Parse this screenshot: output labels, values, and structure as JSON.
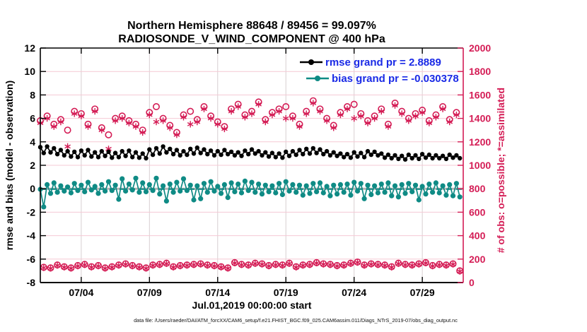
{
  "header": {
    "title_line1": "Northern Hemisphere 88648 / 89456 = 99.097%",
    "title_line2": "RADIOSONDE_V_WIND_COMPONENT @ 400 hPa"
  },
  "footnote": "data file: /Users/raeder/DAI/ATM_forcXX/CAM6_setup/f.e21.FHIST_BGC.f09_025.CAM6assim.011/Diags_NTrS_2019-07/obs_diag_output.nc",
  "chart_data": {
    "type": "line",
    "title": "Northern Hemisphere 88648 / 89456 = 99.097%",
    "subtitle": "RADIOSONDE_V_WIND_COMPONENT @ 400 hPa",
    "xlabel": "Jul.01,2019 00:00:00 start",
    "ylabel_left": "rmse and bias (model - observation)",
    "ylabel_right": "# of obs: o=possible; *=assimilated",
    "ylim_left": [
      -8,
      12
    ],
    "ylim_right": [
      0,
      2000
    ],
    "yticks_left": [
      -8,
      -6,
      -4,
      -2,
      0,
      2,
      4,
      6,
      8,
      10,
      12
    ],
    "yticks_right": [
      0,
      200,
      400,
      600,
      800,
      1000,
      1200,
      1400,
      1600,
      1800,
      2000
    ],
    "x_range_days": [
      0,
      31
    ],
    "xticks": [
      {
        "day": 3,
        "label": "07/04"
      },
      {
        "day": 8,
        "label": "07/09"
      },
      {
        "day": 13,
        "label": "07/14"
      },
      {
        "day": 18,
        "label": "07/19"
      },
      {
        "day": 23,
        "label": "07/24"
      },
      {
        "day": 28,
        "label": "07/29"
      }
    ],
    "grid": true,
    "legend": {
      "position": "top-right-inside",
      "entries": [
        {
          "label": "rmse grand pr = 2.8889",
          "series": "rmse",
          "color": "#000000"
        },
        {
          "label": "bias grand pr = -0.030378",
          "series": "bias",
          "color": "#0f8b85"
        }
      ]
    },
    "stats": {
      "rmse_grand": 2.8889,
      "bias_grand": -0.030378,
      "assimilated_total": 88648,
      "possible_total": 89456,
      "assimilated_pct": 99.097
    },
    "sampling": {
      "start_day": 0,
      "step_day": 0.25
    },
    "colors": {
      "rmse": "#000000",
      "bias": "#0f8b85",
      "obs": "#d41c55",
      "legend_text": "#1a2ae6",
      "grid_h": "#f5c9d4",
      "grid_v": "#d8cfd2",
      "zero_line": "#b3b3b3",
      "axis_left": "#000000",
      "axis_right": "#d41c55"
    },
    "series": [
      {
        "name": "rmse",
        "axis": "left",
        "marker": "filled-circle",
        "line": true,
        "values": [
          3.55,
          3.05,
          3.6,
          3.1,
          3.45,
          2.95,
          3.3,
          2.85,
          3.2,
          2.75,
          3.15,
          2.7,
          3.25,
          2.85,
          3.3,
          2.75,
          3.1,
          2.7,
          3.2,
          2.8,
          3.15,
          2.65,
          3.05,
          2.7,
          3.2,
          2.8,
          3.25,
          2.7,
          3.1,
          2.65,
          3.0,
          2.6,
          3.35,
          2.9,
          3.45,
          3.0,
          3.6,
          3.1,
          3.4,
          2.95,
          3.3,
          2.85,
          3.2,
          2.9,
          3.4,
          3.0,
          3.5,
          3.05,
          3.35,
          2.95,
          3.25,
          2.85,
          3.2,
          2.9,
          3.3,
          2.95,
          3.15,
          2.85,
          3.1,
          2.8,
          3.25,
          2.95,
          3.35,
          3.0,
          3.2,
          2.85,
          3.1,
          2.75,
          3.05,
          2.7,
          3.0,
          2.65,
          3.15,
          2.8,
          3.2,
          2.9,
          3.3,
          2.95,
          3.4,
          3.0,
          3.45,
          3.05,
          3.35,
          2.95,
          3.2,
          2.85,
          3.1,
          2.8,
          3.0,
          2.7,
          2.95,
          2.65,
          3.1,
          2.75,
          3.05,
          2.7,
          3.2,
          2.9,
          3.15,
          2.85,
          3.0,
          2.65,
          2.9,
          2.6,
          2.85,
          2.55,
          2.8,
          2.5,
          2.9,
          2.6,
          2.85,
          2.55,
          2.95,
          2.65,
          2.9,
          2.6,
          2.85,
          2.6,
          2.8,
          2.55,
          2.9,
          2.65,
          2.85,
          2.6
        ]
      },
      {
        "name": "bias",
        "axis": "left",
        "marker": "filled-circle",
        "line": true,
        "values": [
          -0.05,
          -1.55,
          0.35,
          -0.4,
          0.5,
          -0.3,
          0.25,
          -0.2,
          0.15,
          -0.35,
          0.45,
          -0.15,
          0.3,
          -0.25,
          0.55,
          -0.1,
          0.2,
          -0.4,
          0.35,
          -0.2,
          0.6,
          -0.15,
          0.3,
          -0.9,
          0.85,
          -0.2,
          0.4,
          -0.1,
          0.9,
          -0.3,
          0.5,
          -0.25,
          0.35,
          -0.15,
          0.9,
          -0.45,
          0.25,
          -1.05,
          0.4,
          -0.3,
          0.55,
          -0.2,
          0.85,
          -0.15,
          0.3,
          -0.95,
          0.25,
          -0.85,
          0.45,
          -0.3,
          0.6,
          -0.2,
          0.2,
          -0.4,
          0.35,
          -0.75,
          0.5,
          -0.25,
          0.4,
          -0.35,
          0.65,
          -0.15,
          0.55,
          -0.3,
          0.4,
          -0.45,
          0.3,
          -0.25,
          0.25,
          -0.35,
          0.45,
          -0.5,
          0.6,
          -0.2,
          0.35,
          -0.3,
          0.3,
          -0.55,
          0.25,
          -0.4,
          0.45,
          -0.25,
          0.5,
          -0.35,
          0.2,
          -0.6,
          0.3,
          -0.45,
          0.35,
          -0.3,
          0.4,
          -0.55,
          0.55,
          -0.2,
          0.45,
          -0.85,
          0.3,
          -0.5,
          0.25,
          -0.35,
          0.4,
          -0.3,
          0.5,
          -0.6,
          0.25,
          -0.7,
          0.35,
          -0.4,
          0.45,
          -0.25,
          0.3,
          -0.95,
          0.2,
          -0.45,
          0.4,
          -0.3,
          0.5,
          -0.35,
          0.25,
          -0.55,
          0.35,
          -0.6,
          0.45,
          -0.7
        ]
      },
      {
        "name": "possible",
        "axis": "right",
        "marker": "open-circle",
        "line": false,
        "values": [
          1380,
          130,
          1420,
          125,
          1350,
          150,
          1390,
          135,
          1300,
          125,
          1460,
          145,
          1440,
          155,
          1350,
          135,
          1480,
          145,
          1320,
          125,
          1260,
          135,
          1400,
          150,
          1420,
          160,
          1380,
          145,
          1350,
          135,
          1300,
          125,
          1450,
          150,
          1500,
          155,
          1400,
          165,
          1340,
          135,
          1280,
          145,
          1430,
          150,
          1460,
          155,
          1390,
          160,
          1500,
          150,
          1420,
          145,
          1370,
          135,
          1330,
          125,
          1480,
          170,
          1520,
          155,
          1430,
          150,
          1460,
          165,
          1540,
          160,
          1390,
          145,
          1450,
          155,
          1480,
          150,
          1500,
          165,
          1420,
          135,
          1350,
          150,
          1460,
          155,
          1550,
          170,
          1480,
          160,
          1400,
          155,
          1340,
          145,
          1450,
          150,
          1500,
          165,
          1520,
          175,
          1440,
          150,
          1380,
          160,
          1420,
          155,
          1480,
          150,
          1350,
          135,
          1530,
          165,
          1460,
          155,
          1400,
          150,
          1440,
          160,
          1470,
          170,
          1380,
          145,
          1430,
          155,
          1500,
          150,
          1390,
          160,
          1450,
          100
        ]
      },
      {
        "name": "assimilated",
        "axis": "right",
        "marker": "asterisk",
        "line": false,
        "values": [
          1360,
          126,
          1400,
          121,
          1330,
          146,
          1370,
          131,
          1160,
          121,
          1440,
          141,
          1420,
          151,
          1330,
          131,
          1460,
          141,
          1300,
          121,
          1140,
          131,
          1380,
          146,
          1400,
          156,
          1360,
          141,
          1330,
          131,
          1280,
          121,
          1430,
          146,
          1370,
          151,
          1380,
          161,
          1320,
          131,
          1260,
          141,
          1410,
          146,
          1350,
          151,
          1370,
          156,
          1480,
          146,
          1400,
          141,
          1350,
          131,
          1310,
          121,
          1460,
          166,
          1500,
          151,
          1410,
          146,
          1440,
          161,
          1520,
          156,
          1370,
          141,
          1430,
          151,
          1460,
          146,
          1400,
          161,
          1400,
          131,
          1330,
          146,
          1440,
          151,
          1530,
          166,
          1460,
          156,
          1380,
          151,
          1320,
          141,
          1430,
          146,
          1480,
          161,
          1400,
          171,
          1420,
          146,
          1360,
          156,
          1400,
          151,
          1460,
          146,
          1330,
          131,
          1510,
          161,
          1440,
          151,
          1380,
          146,
          1420,
          156,
          1450,
          166,
          1360,
          141,
          1410,
          151,
          1480,
          146,
          1370,
          156,
          1430,
          95
        ]
      }
    ]
  }
}
